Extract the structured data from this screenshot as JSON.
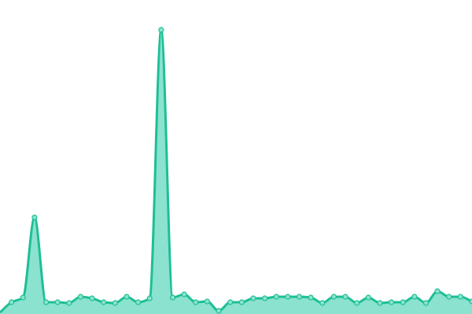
{
  "chart_data": {
    "type": "area",
    "smooth": true,
    "grid": false,
    "axes_visible": false,
    "ylim": [
      0,
      400
    ],
    "values": [
      2,
      15,
      21,
      123,
      15,
      15,
      14,
      22,
      20,
      15,
      14,
      22,
      15,
      20,
      362,
      21,
      25,
      15,
      16,
      4,
      15,
      15,
      20,
      20,
      22,
      22,
      22,
      21,
      14,
      22,
      22,
      14,
      21,
      14,
      15,
      15,
      22,
      14,
      29,
      22,
      22,
      16
    ],
    "colors": {
      "line": "#1dbf93",
      "fill": "#8be2cf",
      "point_fill": "#8be2cf",
      "point_stroke": "#1dbf93"
    }
  }
}
